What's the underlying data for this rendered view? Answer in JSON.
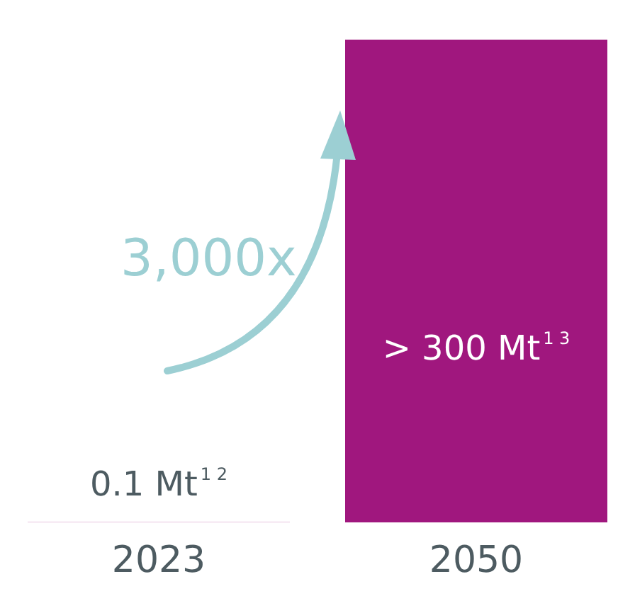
{
  "chart_data": {
    "type": "bar",
    "categories": [
      "2023",
      "2050"
    ],
    "values": [
      0.1,
      300
    ],
    "value_labels": [
      "0.1 Mt$^{1 2}$",
      "> 300 Mt$^{1 3}$"
    ],
    "color": "#a0177e",
    "annotations": [
      "3,000x"
    ]
  }
}
